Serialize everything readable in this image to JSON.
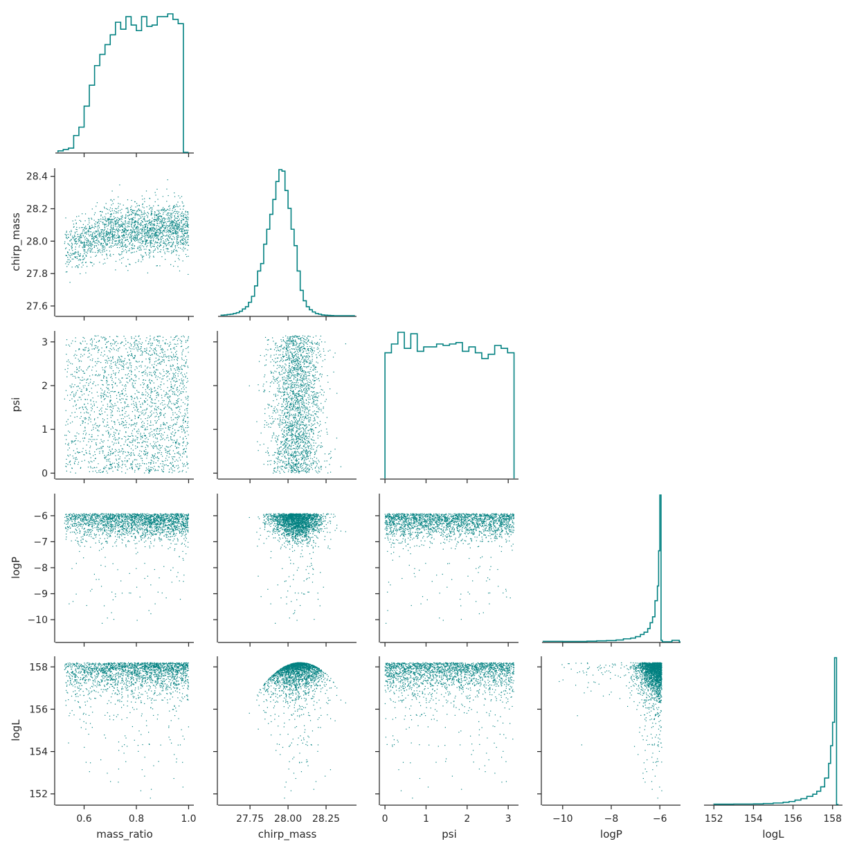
{
  "chart_data": {
    "type": "corner",
    "color": "#008080",
    "variables": [
      {
        "name": "mass_ratio",
        "xlabel": "mass_ratio",
        "ylabel": "",
        "range": [
          0.49,
          1.02
        ],
        "ticks": [
          0.6,
          0.8,
          1.0
        ],
        "tick_labels": [
          "0.6",
          "0.8",
          "1.0"
        ]
      },
      {
        "name": "chirp_mass",
        "xlabel": "chirp_mass",
        "ylabel": "chirp_mass",
        "range": [
          27.54,
          28.45
        ],
        "ticks": [
          27.6,
          27.8,
          28.0,
          28.2,
          28.4
        ],
        "tick_labels": [
          "27.6",
          "27.8",
          "28.0",
          "28.2",
          "28.4"
        ],
        "xticks": [
          27.75,
          28.0,
          28.25
        ],
        "xtick_labels": [
          "27.75",
          "28.00",
          "28.25"
        ]
      },
      {
        "name": "psi",
        "xlabel": "psi",
        "ylabel": "psi",
        "range": [
          -0.12,
          3.25
        ],
        "ticks": [
          0,
          1,
          2,
          3
        ],
        "tick_labels": [
          "0",
          "1",
          "2",
          "3"
        ]
      },
      {
        "name": "logP",
        "xlabel": "logP",
        "ylabel": "logP",
        "range": [
          -10.85,
          -5.15
        ],
        "ticks": [
          -10,
          -9,
          -8,
          -7,
          -6
        ],
        "tick_labels": [
          "−10",
          "−9",
          "−8",
          "−7",
          "−6"
        ],
        "xticks": [
          -10,
          -8,
          -6
        ],
        "xtick_labels": [
          "−10",
          "−8",
          "−6"
        ]
      },
      {
        "name": "logL",
        "xlabel": "logL",
        "ylabel": "logL",
        "range": [
          151.5,
          158.5
        ],
        "ticks": [
          152,
          154,
          156,
          158
        ],
        "tick_labels": [
          "152",
          "154",
          "156",
          "158"
        ]
      }
    ],
    "histograms": [
      {
        "variable": "mass_ratio",
        "edges": [
          0.5,
          0.52,
          0.54,
          0.56,
          0.58,
          0.6,
          0.62,
          0.64,
          0.66,
          0.68,
          0.7,
          0.72,
          0.74,
          0.76,
          0.78,
          0.8,
          0.82,
          0.84,
          0.86,
          0.88,
          0.9,
          0.92,
          0.94,
          0.96,
          0.98,
          1.0
        ],
        "counts": [
          1,
          2,
          3,
          12,
          18,
          33,
          48,
          62,
          70,
          77,
          84,
          93,
          88,
          97,
          91,
          87,
          97,
          90,
          91,
          97,
          97,
          99,
          95,
          92,
          0
        ]
      },
      {
        "variable": "chirp_mass",
        "edges": [
          27.56,
          27.58,
          27.6,
          27.62,
          27.64,
          27.66,
          27.68,
          27.7,
          27.72,
          27.74,
          27.76,
          27.78,
          27.8,
          27.82,
          27.84,
          27.86,
          27.88,
          27.9,
          27.92,
          27.94,
          27.96,
          27.98,
          28.0,
          28.02,
          28.04,
          28.06,
          28.08,
          28.1,
          28.12,
          28.14,
          28.16,
          28.18,
          28.2,
          28.22,
          28.24,
          28.26,
          28.28,
          28.3,
          28.32,
          28.34,
          28.36,
          28.38,
          28.4,
          28.42,
          28.44
        ],
        "counts": [
          0.3,
          0.5,
          0.8,
          1,
          1.5,
          2,
          3,
          4.5,
          6,
          9,
          13,
          20,
          30,
          35,
          48,
          58,
          68,
          78,
          90,
          98,
          97,
          84,
          72,
          58,
          47,
          30,
          17,
          10,
          6,
          4,
          2.5,
          1.5,
          1,
          0.5,
          0.3,
          0.2,
          0.1,
          0,
          0,
          0,
          0,
          0,
          0,
          0
        ]
      },
      {
        "variable": "psi",
        "edges": [
          0.0,
          0.1571,
          0.3142,
          0.4712,
          0.6283,
          0.7854,
          0.9425,
          1.0996,
          1.2566,
          1.4137,
          1.5708,
          1.7279,
          1.885,
          2.042,
          2.1991,
          2.3562,
          2.5133,
          2.6704,
          2.8274,
          2.9845,
          3.1416
        ],
        "counts": [
          86,
          92,
          100,
          89,
          99,
          87,
          90,
          90,
          92,
          91,
          92,
          93,
          87,
          90,
          86,
          82,
          85,
          91,
          89,
          86
        ]
      },
      {
        "variable": "logP",
        "edges": [
          -10.8,
          -10.0,
          -9.0,
          -8.6,
          -8.2,
          -7.8,
          -7.5,
          -7.2,
          -7.0,
          -6.8,
          -6.65,
          -6.5,
          -6.4,
          -6.3,
          -6.2,
          -6.1,
          -6.05,
          -6.0,
          -5.95,
          -5.9,
          -5.5,
          -5.2,
          -5.15
        ],
        "counts": [
          0.3,
          0.2,
          0.4,
          0.6,
          0.8,
          1.2,
          2,
          2.5,
          3.5,
          5,
          6.5,
          9,
          13,
          17,
          28,
          38,
          62,
          100,
          1,
          0,
          1,
          0
        ]
      },
      {
        "variable": "logL",
        "edges": [
          152.0,
          153.0,
          154.0,
          154.5,
          155.0,
          155.5,
          155.8,
          156.1,
          156.4,
          156.7,
          157.0,
          157.2,
          157.4,
          157.6,
          157.8,
          157.9,
          158.0,
          158.1,
          158.2,
          158.3
        ],
        "counts": [
          0.2,
          0.3,
          0.4,
          0.6,
          1,
          1.5,
          2,
          3,
          4,
          5.5,
          7,
          9,
          12,
          18,
          28,
          40,
          56,
          100,
          0
        ]
      }
    ],
    "scatter": {
      "marker": "point",
      "n_samples": 5000
    }
  }
}
